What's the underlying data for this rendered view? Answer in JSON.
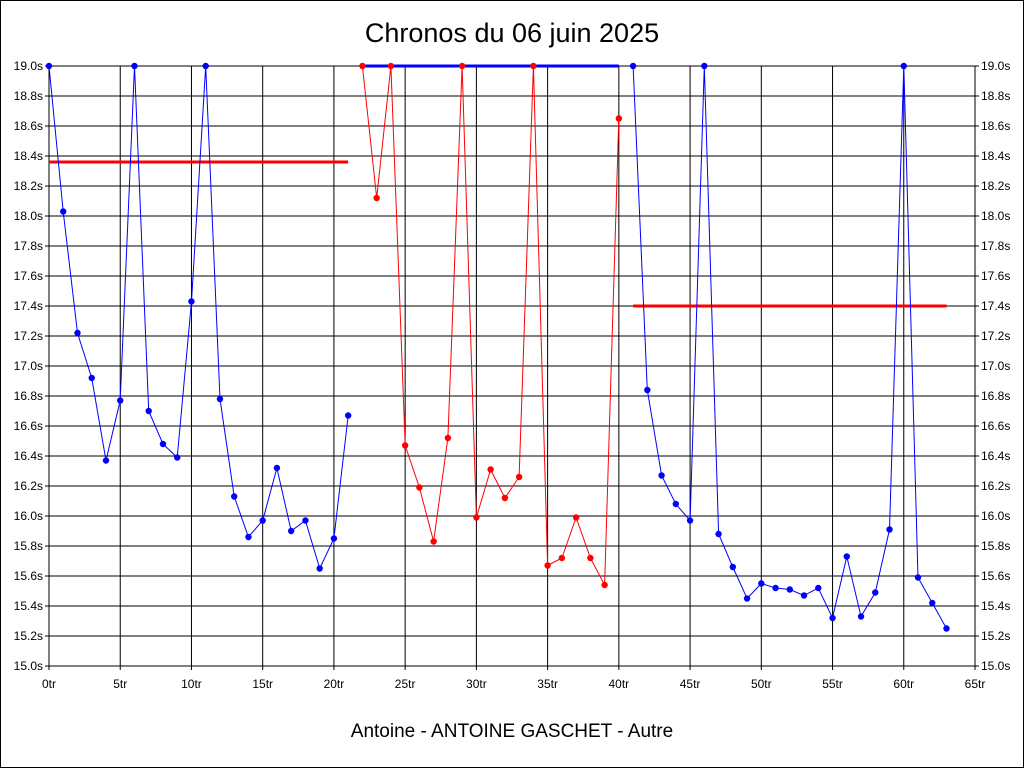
{
  "chart_data": {
    "type": "line",
    "title": "Chronos du 06 juin 2025",
    "caption": "Antoine - ANTOINE GASCHET - Autre",
    "xlabel": "",
    "ylabel": "",
    "xlim": [
      0,
      65
    ],
    "ylim": [
      15.0,
      19.0
    ],
    "x_ticks": [
      0,
      5,
      10,
      15,
      20,
      25,
      30,
      35,
      40,
      45,
      50,
      55,
      60,
      65
    ],
    "x_tick_labels": [
      "0tr",
      "5tr",
      "10tr",
      "15tr",
      "20tr",
      "25tr",
      "30tr",
      "35tr",
      "40tr",
      "45tr",
      "50tr",
      "55tr",
      "60tr",
      "65tr"
    ],
    "y_ticks": [
      15.0,
      15.2,
      15.4,
      15.6,
      15.8,
      16.0,
      16.2,
      16.4,
      16.6,
      16.8,
      17.0,
      17.2,
      17.4,
      17.6,
      17.8,
      18.0,
      18.2,
      18.4,
      18.6,
      18.8,
      19.0
    ],
    "y_tick_labels": [
      "15.0s",
      "15.2s",
      "15.4s",
      "15.6s",
      "15.8s",
      "16.0s",
      "16.2s",
      "16.4s",
      "16.6s",
      "16.8s",
      "17.0s",
      "17.2s",
      "17.4s",
      "17.6s",
      "17.8s",
      "18.0s",
      "18.2s",
      "18.4s",
      "18.6s",
      "18.8s",
      "19.0s"
    ],
    "grid": true,
    "colors": {
      "blue": "#0000ff",
      "red": "#ff0000",
      "grid": "#000000"
    },
    "series": [
      {
        "color": "blue",
        "x": [
          0,
          1,
          2,
          3,
          4,
          5,
          6,
          7,
          8,
          9,
          10,
          11,
          12,
          13,
          14,
          15,
          16,
          17,
          18,
          19,
          20,
          21
        ],
        "y": [
          19.0,
          18.03,
          17.22,
          16.92,
          16.37,
          16.77,
          19.0,
          16.7,
          16.48,
          16.39,
          17.43,
          19.0,
          16.78,
          16.13,
          15.86,
          15.97,
          16.32,
          15.9,
          15.97,
          15.65,
          15.85,
          16.67
        ]
      },
      {
        "color": "red",
        "x": [
          22,
          23,
          24,
          25,
          26,
          27,
          28,
          29,
          30,
          31,
          32,
          33,
          34,
          35,
          36,
          37,
          38,
          39,
          40
        ],
        "y": [
          19.0,
          18.12,
          19.0,
          16.47,
          16.19,
          15.83,
          16.52,
          19.0,
          15.99,
          16.31,
          16.12,
          16.26,
          19.0,
          15.67,
          15.72,
          15.99,
          15.72,
          15.54,
          18.65
        ]
      },
      {
        "color": "blue",
        "x": [
          41,
          42,
          43,
          44,
          45,
          46,
          47,
          48,
          49,
          50,
          51,
          52,
          53,
          54,
          55,
          56,
          57,
          58,
          59,
          60,
          61,
          62,
          63
        ],
        "y": [
          19.0,
          16.84,
          16.27,
          16.08,
          15.97,
          19.0,
          15.88,
          15.66,
          15.45,
          15.55,
          15.52,
          15.51,
          15.47,
          15.52,
          15.32,
          15.73,
          15.33,
          15.49,
          15.91,
          19.0,
          15.59,
          15.42,
          15.25
        ]
      }
    ],
    "segments": [
      {
        "color": "red",
        "x": [
          0,
          21
        ],
        "y": 18.36
      },
      {
        "color": "blue",
        "x": [
          22,
          40
        ],
        "y": 19.0
      },
      {
        "color": "red",
        "x": [
          41,
          63
        ],
        "y": 17.4
      }
    ]
  }
}
